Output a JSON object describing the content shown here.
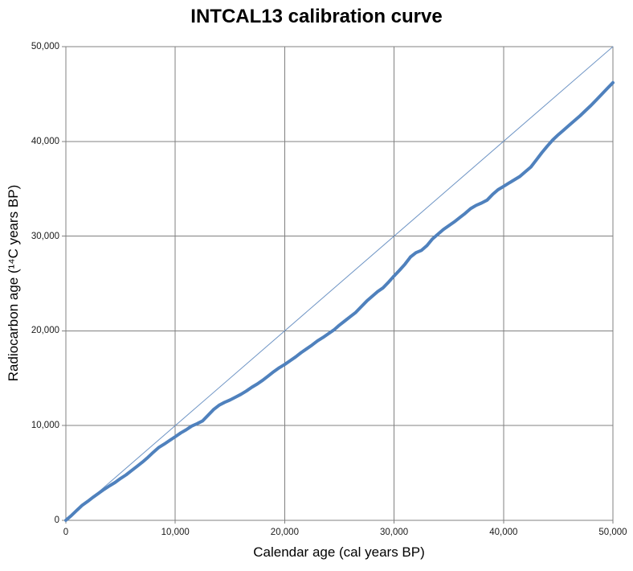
{
  "title": "INTCAL13 calibration curve",
  "colors": {
    "background": "#ffffff",
    "gridline": "#808080",
    "axis": "#808080",
    "title_text": "#000000",
    "tick_text": "#1a1a1a",
    "curve": "#4f81bd",
    "identity_line": "#6f95c5"
  },
  "chart_data": {
    "type": "line",
    "title": "INTCAL13 calibration curve",
    "xlabel": "Calendar age (cal years BP)",
    "ylabel": "Radiocarbon age (¹⁴C years BP)",
    "xlim": [
      0,
      50000
    ],
    "ylim": [
      0,
      50000
    ],
    "grid": true,
    "legend": "none",
    "x_ticks": [
      0,
      10000,
      20000,
      30000,
      40000,
      50000
    ],
    "y_ticks": [
      0,
      10000,
      20000,
      30000,
      40000,
      50000
    ],
    "x_tick_labels": [
      "0",
      "10,000",
      "20,000",
      "30,000",
      "40,000",
      "50,000"
    ],
    "y_tick_labels": [
      "0",
      "10,000",
      "20,000",
      "30,000",
      "40,000",
      "50,000"
    ],
    "series": [
      {
        "name": "INTCAL13 calibration curve",
        "role": "calibration-curve",
        "color": "#4f81bd",
        "stroke_width": 4,
        "x": [
          0,
          500,
          1000,
          1500,
          2000,
          2500,
          3000,
          3500,
          4000,
          4500,
          5000,
          5500,
          6000,
          6500,
          7000,
          7500,
          8000,
          8500,
          9000,
          9500,
          10000,
          10500,
          11000,
          11500,
          12000,
          12500,
          13000,
          13500,
          14000,
          14500,
          15000,
          15500,
          16000,
          16500,
          17000,
          17500,
          18000,
          18500,
          19000,
          19500,
          20000,
          20500,
          21000,
          21500,
          22000,
          22500,
          23000,
          23500,
          24000,
          24500,
          25000,
          25500,
          26000,
          26500,
          27000,
          27500,
          28000,
          28500,
          29000,
          29500,
          30000,
          30500,
          31000,
          31500,
          32000,
          32500,
          33000,
          33500,
          34000,
          34500,
          35000,
          35500,
          36000,
          36500,
          37000,
          37500,
          38000,
          38500,
          39000,
          39500,
          40000,
          40500,
          41000,
          41500,
          42000,
          42500,
          43000,
          43500,
          44000,
          44500,
          45000,
          45500,
          46000,
          46500,
          47000,
          47500,
          48000,
          48500,
          49000,
          49500,
          50000
        ],
        "y": [
          5,
          500,
          1050,
          1600,
          2000,
          2450,
          2870,
          3280,
          3650,
          4000,
          4420,
          4800,
          5250,
          5700,
          6150,
          6650,
          7200,
          7700,
          8060,
          8450,
          8830,
          9230,
          9560,
          9950,
          10200,
          10500,
          11100,
          11700,
          12150,
          12450,
          12700,
          13000,
          13300,
          13650,
          14050,
          14400,
          14800,
          15250,
          15700,
          16100,
          16450,
          16850,
          17250,
          17700,
          18100,
          18500,
          18950,
          19300,
          19700,
          20100,
          20600,
          21050,
          21500,
          21950,
          22550,
          23150,
          23650,
          24150,
          24550,
          25150,
          25800,
          26400,
          27050,
          27800,
          28250,
          28500,
          29000,
          29700,
          30200,
          30700,
          31100,
          31500,
          31950,
          32400,
          32900,
          33250,
          33500,
          33800,
          34400,
          34900,
          35250,
          35600,
          35950,
          36300,
          36800,
          37300,
          38050,
          38800,
          39500,
          40150,
          40700,
          41200,
          41700,
          42200,
          42700,
          43250,
          43800,
          44400,
          45000,
          45600,
          46200
        ]
      },
      {
        "name": "1:1 line (radiocarbon age = calendar age)",
        "role": "one-to-one-line",
        "color": "#6f95c5",
        "stroke_width": 1,
        "x": [
          0,
          50000
        ],
        "y": [
          0,
          50000
        ]
      }
    ]
  }
}
